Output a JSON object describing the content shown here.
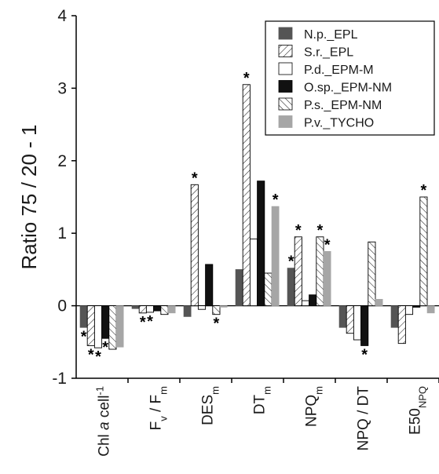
{
  "chart_data": {
    "type": "bar",
    "title": "",
    "xlabel": "",
    "ylabel": "Ratio 75 / 20 - 1",
    "ylim": [
      -1,
      4
    ],
    "yticks": [
      "-1",
      "0",
      "1",
      "2",
      "3",
      "4"
    ],
    "categories": [
      {
        "main": "Chl ",
        "italic": "a",
        "rest": " cell",
        "sup": "-1",
        "sub": ""
      },
      {
        "main": "F",
        "sub1": "v",
        "mid": " / F",
        "sub": "m"
      },
      {
        "main": "DES",
        "sub": "m"
      },
      {
        "main": "DT",
        "sub": "m"
      },
      {
        "main": "NPQ",
        "sub": "m"
      },
      {
        "main": "NPQ / DT",
        "sub": ""
      },
      {
        "main": "E50",
        "sub": "NPQ"
      }
    ],
    "legend_position": "top-right",
    "series": [
      {
        "name": "N.p._EPL",
        "style": "dark",
        "values": [
          -0.3,
          -0.04,
          -0.15,
          0.5,
          0.52,
          -0.3,
          -0.3
        ]
      },
      {
        "name": "S.r._EPL",
        "style": "hatch-forward",
        "values": [
          -0.55,
          -0.1,
          1.67,
          3.05,
          0.95,
          -0.38,
          -0.52
        ]
      },
      {
        "name": "P.d._EPM-M",
        "style": "white",
        "values": [
          -0.58,
          -0.09,
          -0.05,
          0.92,
          0.07,
          -0.47,
          -0.12
        ]
      },
      {
        "name": "O.sp._EPM-NM",
        "style": "black",
        "values": [
          -0.45,
          -0.07,
          0.57,
          1.72,
          0.15,
          -0.55,
          -0.02
        ]
      },
      {
        "name": "P.s._EPM-NM",
        "style": "hatch-back",
        "values": [
          -0.6,
          -0.12,
          -0.12,
          0.45,
          0.95,
          0.88,
          1.5
        ]
      },
      {
        "name": "P.v._TYCHO",
        "style": "light",
        "values": [
          -0.57,
          -0.1,
          -0.02,
          1.37,
          0.75,
          0.09,
          -0.1
        ]
      }
    ],
    "significance": [
      {
        "category": 0,
        "series": 0
      },
      {
        "category": 0,
        "series": 1
      },
      {
        "category": 0,
        "series": 2
      },
      {
        "category": 0,
        "series": 3
      },
      {
        "category": 1,
        "series": 1
      },
      {
        "category": 1,
        "series": 2
      },
      {
        "category": 2,
        "series": 1
      },
      {
        "category": 2,
        "series": 4
      },
      {
        "category": 3,
        "series": 1
      },
      {
        "category": 3,
        "series": 5
      },
      {
        "category": 4,
        "series": 0
      },
      {
        "category": 4,
        "series": 1
      },
      {
        "category": 4,
        "series": 4
      },
      {
        "category": 4,
        "series": 5
      },
      {
        "category": 5,
        "series": 3
      },
      {
        "category": 6,
        "series": 4
      }
    ],
    "significance_symbol": "*",
    "colors": {
      "dark": "#555555",
      "light": "#a6a6a6",
      "black": "#111111",
      "white": "#ffffff",
      "stroke": "#000000"
    }
  }
}
